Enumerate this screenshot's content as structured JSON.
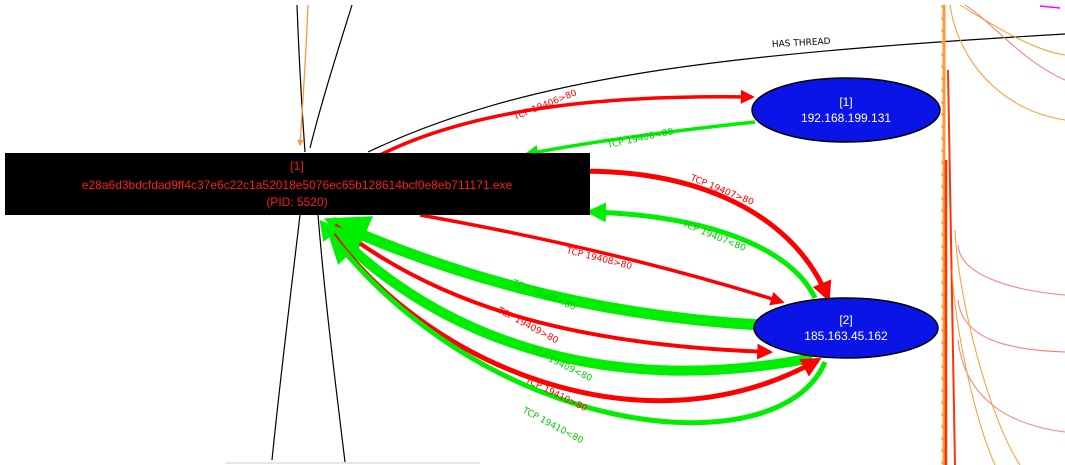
{
  "colors": {
    "process_bg": "#000000",
    "process_text": "#ff1a1a",
    "ip_fill": "#0a14e6",
    "ip_text": "#ffffff",
    "outbound": "#ff0000",
    "inbound": "#00ee00",
    "thread_edge": "#222222",
    "orange": "#ff9933",
    "pink": "#ff7777",
    "magenta": "#ff00ff"
  },
  "process_node": {
    "id_label": "[1]",
    "name": "e28a6d3bdcfdad9ff4c37e6c22c1a52018e5076ec65b128614bcf0e8eb711171.exe",
    "pid_label": "(PID: 5520)"
  },
  "ip_nodes": [
    {
      "id_label": "[1]",
      "address": "192.168.199.131"
    },
    {
      "id_label": "[2]",
      "address": "185.163.45.162"
    }
  ],
  "edge_labels": {
    "has_thread": "HAS THREAD",
    "tcp_19406_out": "TCP 19406>80",
    "tcp_19406_in": "TCP 19406<80",
    "tcp_19407_out": "TCP 19407>80",
    "tcp_19407_in": "TCP 19407<80",
    "tcp_19408_out": "TCP 19408>80",
    "tcp_19408_in": "TCP 19408<80",
    "tcp_19409_out": "TCP 19409>80",
    "tcp_19409_in": "TCP 19409<80",
    "tcp_19410_out": "TCP 19410>80",
    "tcp_19410_in": "TCP 19410<80"
  }
}
